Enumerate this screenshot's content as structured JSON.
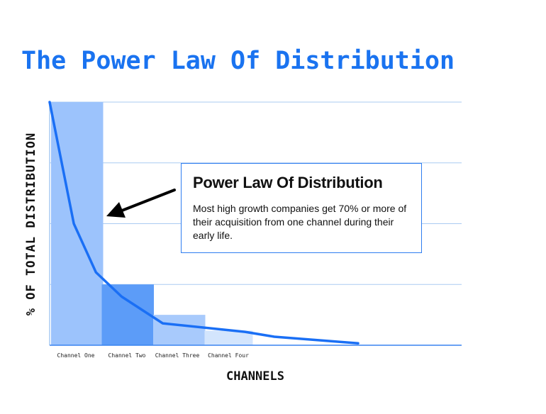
{
  "title": "The Power Law Of Distribution",
  "callout": {
    "title": "Power Law Of Distribution",
    "body": "Most high growth companies get 70% or more of their acquisition from one channel during their early life."
  },
  "colors": {
    "title": "#1a73f0",
    "curve": "#1a6ff5",
    "bar_one": "#9cc3fc",
    "bar_two": "#5c9cf8",
    "bar_three": "#a8cafc",
    "bar_four": "#d3e5fd",
    "grid": "#aacbf2"
  },
  "chart_data": {
    "type": "bar",
    "xlabel": "CHANNELS",
    "ylabel": "% OF TOTAL DISTRIBUTION",
    "ylim": [
      0,
      100
    ],
    "grid": true,
    "categories": [
      "Channel One",
      "Channel Two",
      "Channel Three",
      "Channel Four"
    ],
    "values": [
      100,
      25,
      12.5,
      6
    ],
    "curve": {
      "type": "line",
      "x": [
        0,
        0.47,
        0.9,
        1.4,
        2.2,
        3.8,
        4.37,
        6.0
      ],
      "y": [
        100,
        50,
        30,
        20,
        9,
        5.5,
        3.5,
        0.8
      ]
    }
  }
}
